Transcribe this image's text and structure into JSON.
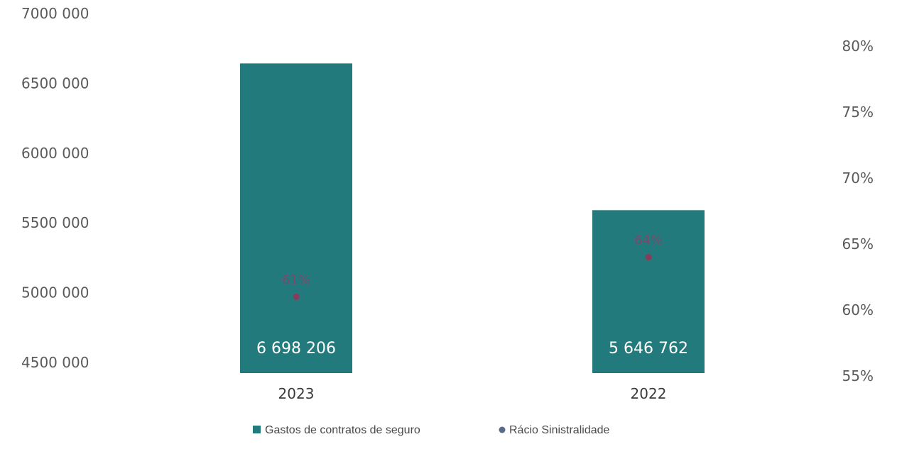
{
  "chart_data": {
    "type": "bar",
    "categories": [
      "2023",
      "2022"
    ],
    "series": [
      {
        "name": "Gastos de contratos de seguro",
        "kind": "bar",
        "axis": "left",
        "color": "#237a7c",
        "values": [
          6698206,
          5646762
        ],
        "data_labels": [
          "6 698 206",
          "5 646 762"
        ]
      },
      {
        "name": "Rácio Sinistralidade",
        "kind": "scatter",
        "axis": "right",
        "color": "#8a3a5a",
        "values": [
          61,
          64
        ],
        "data_labels": [
          "61%",
          "64%"
        ]
      }
    ],
    "y_left": {
      "min": 4500000,
      "max": 7000000,
      "ticks": [
        7000000,
        6500000,
        6000000,
        5500000,
        5000000,
        4500000
      ],
      "tick_labels": [
        "7000 000",
        "6500 000",
        "6000 000",
        "5500 000",
        "5000 000",
        "4500 000"
      ]
    },
    "y_right": {
      "min": 55,
      "max": 80,
      "ticks": [
        80,
        75,
        70,
        65,
        60,
        55
      ],
      "tick_labels": [
        "80%",
        "75%",
        "70%",
        "65%",
        "60%",
        "55%"
      ]
    },
    "grid": false,
    "legend": "bottom"
  }
}
